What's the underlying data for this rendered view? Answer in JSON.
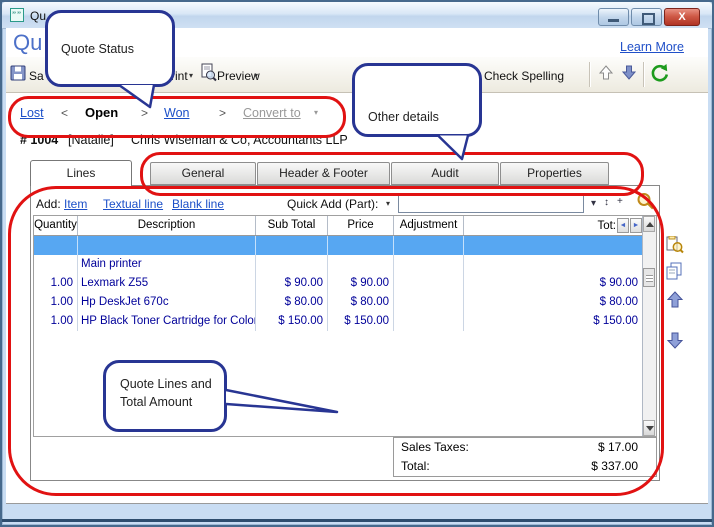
{
  "window": {
    "title": "Qu"
  },
  "header": {
    "title": "Qu",
    "learn_more": "Learn More"
  },
  "toolbar": {
    "save_label": "Sa",
    "print_label": "Print",
    "preview_label": "Preview",
    "check_spelling_label": "Check Spelling"
  },
  "status_bar": {
    "lost": "Lost",
    "sep_left": "<",
    "open": "Open",
    "sep_right1": ">",
    "won": "Won",
    "sep_right2": ">",
    "convert_to": "Convert to"
  },
  "quote_info": {
    "number": "# 1004",
    "rep": "[Natalie]",
    "customer": "Chris Wiseman & Co, Accountants LLP"
  },
  "tabs": {
    "items": [
      {
        "label": "Lines",
        "active": true
      },
      {
        "label": "General"
      },
      {
        "label": "Header & Footer"
      },
      {
        "label": "Audit"
      },
      {
        "label": "Properties"
      }
    ]
  },
  "add_row": {
    "label": "Add:",
    "item_link": "Item",
    "textual_link": "Textual line",
    "blank_link": "Blank line",
    "quick_add_label": "Quick Add (Part):",
    "input_value": ""
  },
  "table": {
    "columns": [
      "Quantity",
      "Description",
      "Sub Total",
      "Price",
      "Adjustment",
      "Tot:"
    ],
    "rows": [
      {
        "quantity": "",
        "description": "",
        "sub_total": "",
        "price": "",
        "adjustment": "",
        "total": "",
        "selected": true
      },
      {
        "quantity": "",
        "description": "Main printer",
        "sub_total": "",
        "price": "",
        "adjustment": "",
        "total": ""
      },
      {
        "quantity": "1.00",
        "description": "Lexmark Z55",
        "sub_total": "$ 90.00",
        "price": "$ 90.00",
        "adjustment": "",
        "total": "$ 90.00"
      },
      {
        "quantity": "1.00",
        "description": "Hp DeskJet 670c",
        "sub_total": "$ 80.00",
        "price": "$ 80.00",
        "adjustment": "",
        "total": "$ 80.00"
      },
      {
        "quantity": "1.00",
        "description": "HP Black Toner Cartridge for Color Las",
        "sub_total": "$ 150.00",
        "price": "$ 150.00",
        "adjustment": "",
        "total": "$ 150.00"
      }
    ]
  },
  "totals": {
    "sales_taxes_label": "Sales Taxes:",
    "sales_taxes_value": "$ 17.00",
    "total_label": "Total:",
    "total_value": "$ 337.00"
  },
  "callouts": {
    "quote_status": "Quote Status",
    "other_details": "Other details",
    "quote_lines_line1": "Quote Lines and",
    "quote_lines_line2": "Total Amount"
  },
  "colors": {
    "annotation_red": "#e11212",
    "callout_navy": "#283593",
    "link_blue": "#1b4fc8",
    "selected_row_blue": "#57a7f2",
    "row_text_navy": "#000099",
    "heading_blue": "#4c70c8",
    "refresh_green": "#1d9b1d"
  }
}
